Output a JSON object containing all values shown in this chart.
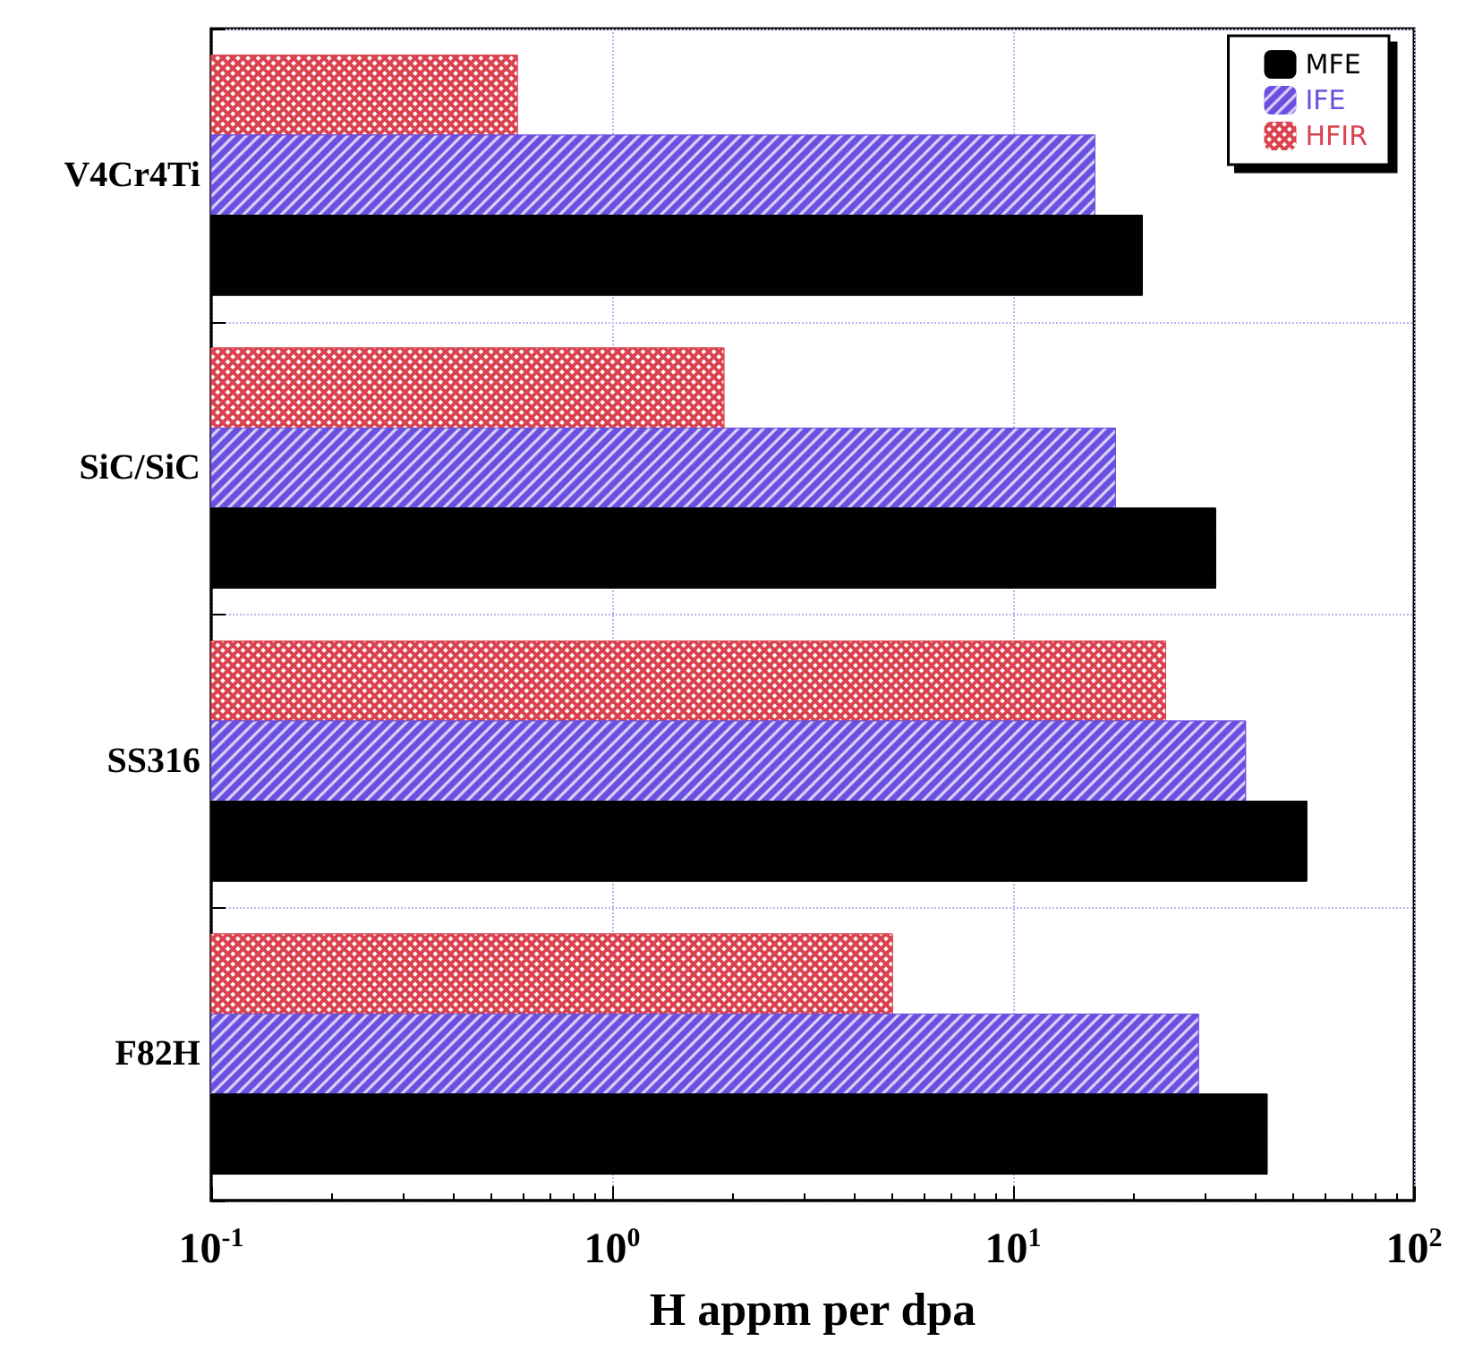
{
  "chart_data": {
    "type": "bar",
    "orientation": "horizontal",
    "log": "x",
    "xlabel": "H appm per dpa",
    "categories": [
      "V4Cr4Ti",
      "SiC/SiC",
      "SS316",
      "F82H"
    ],
    "series": [
      {
        "name": "MFE",
        "color": "#000000",
        "values": [
          21,
          32,
          54,
          43
        ]
      },
      {
        "name": "IFE",
        "color": "#6a4fe0",
        "values": [
          16,
          18,
          38,
          29
        ]
      },
      {
        "name": "HFIR",
        "color": "#d9424e",
        "values": [
          0.58,
          1.9,
          24,
          5.0
        ]
      }
    ],
    "xlim": [
      0.1,
      100
    ],
    "xticks": [
      {
        "value": 0.1,
        "label": "10$^{-1}$"
      },
      {
        "value": 1,
        "label": "10$^{0}$"
      },
      {
        "value": 10,
        "label": "10$^{1}$"
      },
      {
        "value": 100,
        "label": "10$^{2}$"
      }
    ],
    "grid": true,
    "legend": "top right"
  }
}
